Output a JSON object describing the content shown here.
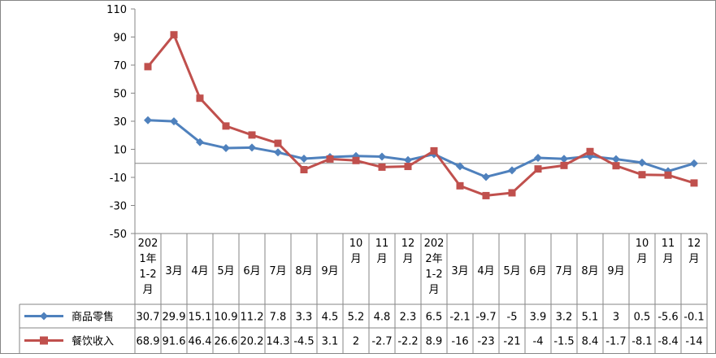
{
  "chart_data": {
    "type": "line",
    "categories": [
      [
        "202",
        "1年",
        "1-2",
        "月"
      ],
      [
        "3月"
      ],
      [
        "4月"
      ],
      [
        "5月"
      ],
      [
        "6月"
      ],
      [
        "7月"
      ],
      [
        "8月"
      ],
      [
        "9月"
      ],
      [
        "10",
        "月"
      ],
      [
        "11",
        "月"
      ],
      [
        "12",
        "月"
      ],
      [
        "202",
        "2年",
        "1-2",
        "月"
      ],
      [
        "3月"
      ],
      [
        "4月"
      ],
      [
        "5月"
      ],
      [
        "6月"
      ],
      [
        "7月"
      ],
      [
        "8月"
      ],
      [
        "9月"
      ],
      [
        "10",
        "月"
      ],
      [
        "11",
        "月"
      ],
      [
        "12",
        "月"
      ]
    ],
    "series": [
      {
        "name": "商品零售",
        "color": "#4F81BD",
        "marker": "diamond",
        "values": [
          30.7,
          29.9,
          15.1,
          10.9,
          11.2,
          7.8,
          3.3,
          4.5,
          5.2,
          4.8,
          2.3,
          6.5,
          -2.1,
          -9.7,
          -5,
          3.9,
          3.2,
          5.1,
          3,
          0.5,
          -5.6,
          -0.1
        ],
        "labels": [
          "30.7",
          "29.9",
          "15.1",
          "10.9",
          "11.2",
          "7.8",
          "3.3",
          "4.5",
          "5.2",
          "4.8",
          "2.3",
          "6.5",
          "-2.1",
          "-9.7",
          "-5",
          "3.9",
          "3.2",
          "5.1",
          "3",
          "0.5",
          "-5.6",
          "-0.1"
        ]
      },
      {
        "name": "餐饮收入",
        "color": "#C0504D",
        "marker": "square",
        "values": [
          68.9,
          91.6,
          46.4,
          26.6,
          20.2,
          14.3,
          -4.5,
          3.1,
          2,
          -2.7,
          -2.2,
          8.9,
          -16,
          -23,
          -21,
          -4,
          -1.5,
          8.4,
          -1.7,
          -8.1,
          -8.4,
          -14
        ],
        "labels": [
          "68.9",
          "91.6",
          "46.4",
          "26.6",
          "20.2",
          "14.3",
          "-4.5",
          "3.1",
          "2",
          "-2.7",
          "-2.2",
          "8.9",
          "-16",
          "-23",
          "-21",
          "-4",
          "-1.5",
          "8.4",
          "-1.7",
          "-8.1",
          "-8.4",
          "-14"
        ]
      }
    ],
    "ylim": [
      -50,
      110
    ],
    "yticks": [
      110,
      90,
      70,
      50,
      30,
      10,
      -10,
      -30,
      -50
    ],
    "ytick_labels": [
      "110",
      "90",
      "70",
      "50",
      "30",
      "10",
      "-10",
      "-30",
      "-50"
    ],
    "zero_line": true,
    "grid": false,
    "legend": "data-table-left"
  }
}
